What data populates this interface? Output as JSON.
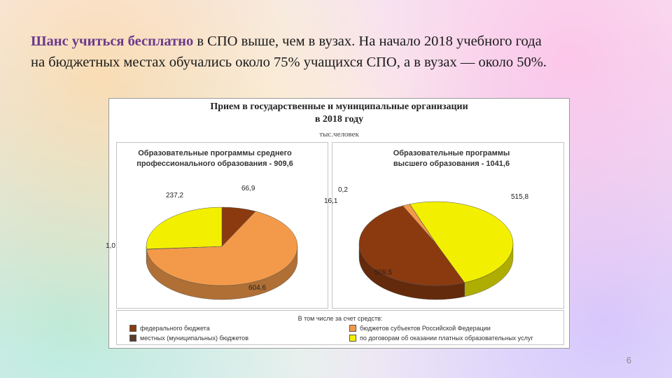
{
  "slide": {
    "text_accent": "Шанс учиться бесплатно",
    "text_line1_rest": " в СПО выше, чем в вузах. На начало 2018 учебного года",
    "text_line2": "на бюджетных местах обучались около 75% учащихся СПО, а в вузах — около 50%.",
    "page_number": "6"
  },
  "colors": {
    "federal": "#8b3a10",
    "regional": "#f39a4a",
    "municipal": "#5a3d2b",
    "paid": "#f2f000",
    "accent": "#6b3a8c"
  },
  "chart_data": {
    "type": "pie",
    "title": "Прием в государственные и муниципальные организации",
    "title_line2": "в 2018 году",
    "units": "тыс.человек",
    "legend_heading": "В том числе за счет средств:",
    "legend": [
      {
        "key": "federal",
        "label": "федерального бюджета"
      },
      {
        "key": "regional",
        "label": "бюджетов субъектов Российской Федерации"
      },
      {
        "key": "municipal",
        "label": "местных (муниципальных) бюджетов"
      },
      {
        "key": "paid",
        "label": "по договорам об оказании платных образовательных услуг"
      }
    ],
    "charts": [
      {
        "title_line1": "Образовательные программы среднего",
        "title_line2": "профессионального образования - 909,6",
        "total": 909.6,
        "slices": [
          {
            "key": "federal",
            "value": 66.9,
            "label": "66,9"
          },
          {
            "key": "regional",
            "value": 604.6,
            "label": "604,6"
          },
          {
            "key": "municipal",
            "value": 1.0,
            "label": "1,0"
          },
          {
            "key": "paid",
            "value": 237.2,
            "label": "237,2"
          }
        ]
      },
      {
        "title_line1": "Образовательные программы",
        "title_line2": "высшего образования - 1041,6",
        "total": 1041.6,
        "slices": [
          {
            "key": "paid",
            "value": 515.8,
            "label": "515,8"
          },
          {
            "key": "federal",
            "value": 509.5,
            "label": "509,5"
          },
          {
            "key": "regional",
            "value": 16.1,
            "label": "16,1"
          },
          {
            "key": "municipal",
            "value": 0.2,
            "label": "0,2"
          }
        ]
      }
    ]
  }
}
